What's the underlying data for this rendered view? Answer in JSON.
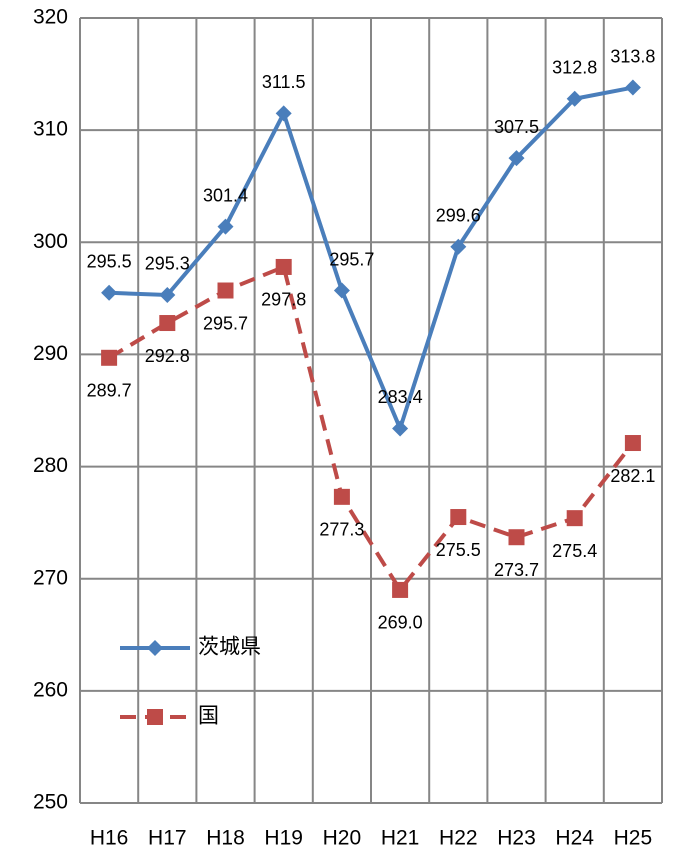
{
  "chart_data": {
    "type": "line",
    "categories": [
      "H16",
      "H17",
      "H18",
      "H19",
      "H20",
      "H21",
      "H22",
      "H23",
      "H24",
      "H25"
    ],
    "series": [
      {
        "name": "茨城県",
        "color": "#4a7ebb",
        "marker": "diamond",
        "dash": false,
        "values": [
          295.5,
          295.3,
          301.4,
          311.5,
          295.7,
          283.4,
          299.6,
          307.5,
          312.8,
          313.8
        ]
      },
      {
        "name": "国",
        "color": "#be4b48",
        "marker": "square",
        "dash": true,
        "values": [
          289.7,
          292.8,
          295.7,
          297.8,
          277.3,
          269,
          275.5,
          273.7,
          275.4,
          282.1
        ],
        "value_labels": [
          "289.7",
          "292.8",
          "295.7",
          "297.8",
          "277.3",
          "269.0",
          "275.5",
          "273.7",
          "275.4",
          "282.1"
        ]
      }
    ],
    "ylim": [
      250,
      320
    ],
    "yticks": [
      250,
      260,
      270,
      280,
      290,
      300,
      310,
      320
    ],
    "grid": true,
    "legend": "lower left"
  }
}
